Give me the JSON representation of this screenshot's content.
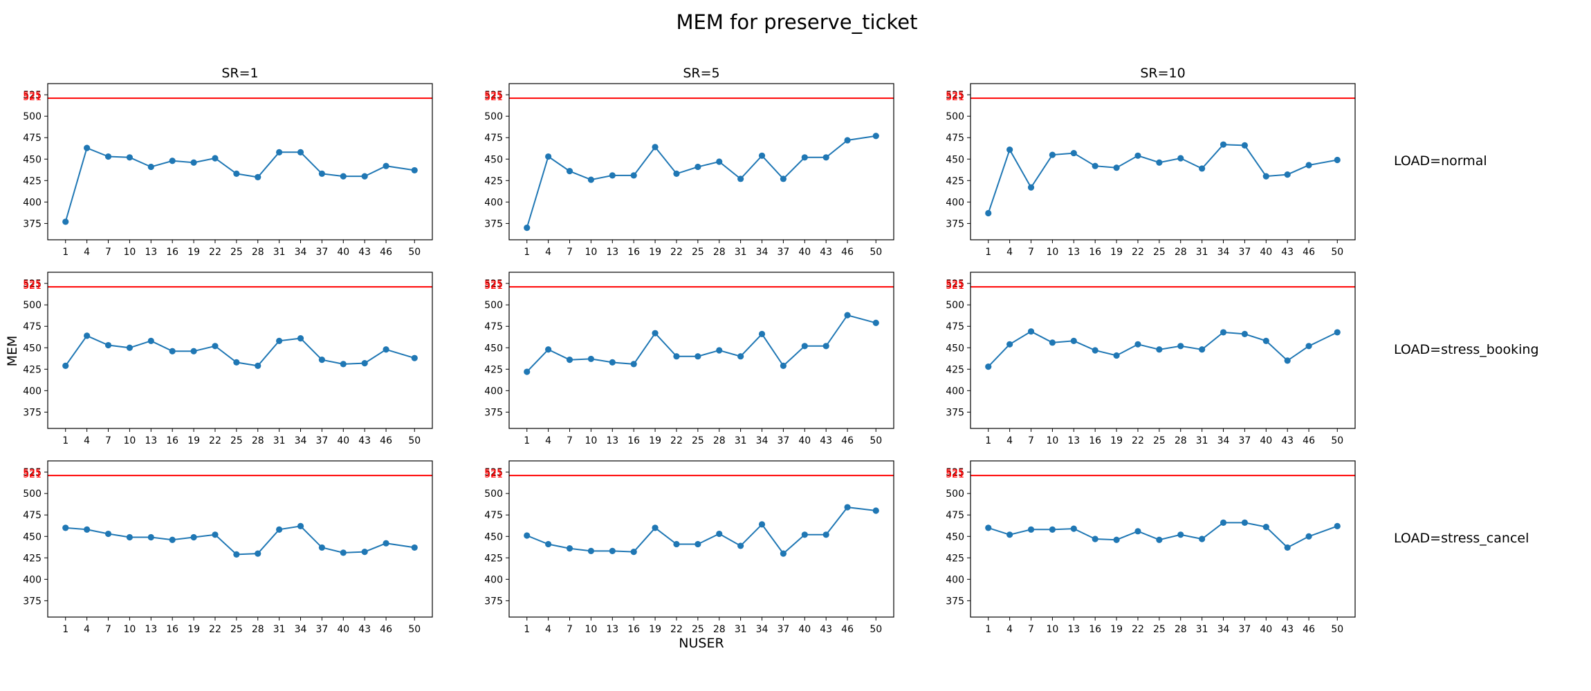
{
  "figure": {
    "title": "MEM for preserve_ticket",
    "xlabel": "NUSER",
    "ylabel": "MEM",
    "col_titles": [
      "SR=1",
      "SR=5",
      "SR=10"
    ],
    "row_titles": [
      "LOAD=normal",
      "LOAD=stress_booking",
      "LOAD=stress_cancel"
    ]
  },
  "chart_data": {
    "type": "line",
    "grid": false,
    "series_color": "#1f77b4",
    "threshold_color": "#ff0000",
    "x_ticks": [
      1,
      4,
      7,
      10,
      13,
      16,
      19,
      22,
      25,
      28,
      31,
      34,
      37,
      40,
      43,
      46,
      50
    ],
    "y_ticks": [
      375,
      400,
      425,
      450,
      475,
      500,
      525
    ],
    "y_tick_labels": [
      "375",
      "400",
      "425",
      "450",
      "475",
      "500",
      "525"
    ],
    "overlap_y_tick_labels": [
      "521",
      "525"
    ],
    "ylim": [
      356,
      538
    ],
    "threshold": 521,
    "panels": [
      {
        "row": "LOAD=normal",
        "col": "SR=1",
        "x": [
          1,
          4,
          7,
          10,
          13,
          16,
          19,
          22,
          25,
          28,
          31,
          34,
          37,
          40,
          43,
          46,
          50
        ],
        "y": [
          377,
          463,
          453,
          452,
          441,
          448,
          446,
          451,
          433,
          429,
          458,
          458,
          433,
          430,
          430,
          442,
          437
        ]
      },
      {
        "row": "LOAD=normal",
        "col": "SR=5",
        "x": [
          1,
          4,
          7,
          10,
          13,
          16,
          19,
          22,
          25,
          28,
          31,
          34,
          37,
          40,
          43,
          46,
          50
        ],
        "y": [
          370,
          453,
          436,
          426,
          431,
          431,
          464,
          433,
          441,
          447,
          427,
          454,
          427,
          452,
          452,
          472,
          477
        ]
      },
      {
        "row": "LOAD=normal",
        "col": "SR=10",
        "x": [
          1,
          4,
          7,
          10,
          13,
          16,
          19,
          22,
          25,
          28,
          31,
          34,
          37,
          40,
          43,
          46,
          50
        ],
        "y": [
          387,
          461,
          417,
          455,
          457,
          442,
          440,
          454,
          446,
          451,
          439,
          467,
          466,
          430,
          432,
          443,
          449
        ]
      },
      {
        "row": "LOAD=stress_booking",
        "col": "SR=1",
        "x": [
          1,
          4,
          7,
          10,
          13,
          16,
          19,
          22,
          25,
          28,
          31,
          34,
          37,
          40,
          43,
          46,
          50
        ],
        "y": [
          429,
          464,
          453,
          450,
          458,
          446,
          446,
          452,
          433,
          429,
          458,
          461,
          436,
          431,
          432,
          448,
          438
        ]
      },
      {
        "row": "LOAD=stress_booking",
        "col": "SR=5",
        "x": [
          1,
          4,
          7,
          10,
          13,
          16,
          19,
          22,
          25,
          28,
          31,
          34,
          37,
          40,
          43,
          46,
          50
        ],
        "y": [
          422,
          448,
          436,
          437,
          433,
          431,
          467,
          440,
          440,
          447,
          440,
          466,
          429,
          452,
          452,
          488,
          479
        ]
      },
      {
        "row": "LOAD=stress_booking",
        "col": "SR=10",
        "x": [
          1,
          4,
          7,
          10,
          13,
          16,
          19,
          22,
          25,
          28,
          31,
          34,
          37,
          40,
          43,
          46,
          50
        ],
        "y": [
          428,
          454,
          469,
          456,
          458,
          447,
          441,
          454,
          448,
          452,
          448,
          468,
          466,
          458,
          435,
          452,
          468
        ]
      },
      {
        "row": "LOAD=stress_cancel",
        "col": "SR=1",
        "x": [
          1,
          4,
          7,
          10,
          13,
          16,
          19,
          22,
          25,
          28,
          31,
          34,
          37,
          40,
          43,
          46,
          50
        ],
        "y": [
          460,
          458,
          453,
          449,
          449,
          446,
          449,
          452,
          429,
          430,
          458,
          462,
          437,
          431,
          432,
          442,
          437
        ]
      },
      {
        "row": "LOAD=stress_cancel",
        "col": "SR=5",
        "x": [
          1,
          4,
          7,
          10,
          13,
          16,
          19,
          22,
          25,
          28,
          31,
          34,
          37,
          40,
          43,
          46,
          50
        ],
        "y": [
          451,
          441,
          436,
          433,
          433,
          432,
          460,
          441,
          441,
          453,
          439,
          464,
          430,
          452,
          452,
          484,
          480
        ]
      },
      {
        "row": "LOAD=stress_cancel",
        "col": "SR=10",
        "x": [
          1,
          4,
          7,
          10,
          13,
          16,
          19,
          22,
          25,
          28,
          31,
          34,
          37,
          40,
          43,
          46,
          50
        ],
        "y": [
          460,
          452,
          458,
          458,
          459,
          447,
          446,
          456,
          446,
          452,
          447,
          466,
          466,
          461,
          437,
          450,
          462
        ]
      }
    ]
  }
}
